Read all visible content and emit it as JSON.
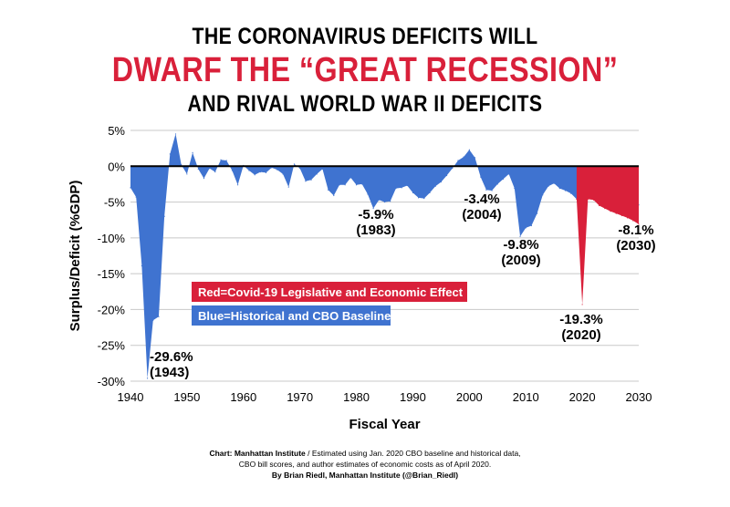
{
  "title": {
    "line1": "THE CORONAVIRUS DEFICITS WILL",
    "line2": "DWARF THE “GREAT RECESSION”",
    "line3": "AND RIVAL WORLD WAR II DEFICITS"
  },
  "colors": {
    "historical": "#3f73d0",
    "covid": "#d9203a",
    "title_accent": "#d9203a"
  },
  "footer": {
    "source_label": "Chart: Manhattan Institute",
    "source_text": " / Estimated using Jan. 2020 CBO baseline and historical data,",
    "line2": "CBO bill scores, and author estimates of economic costs as of April 2020.",
    "line3": "By Brian Riedl, Manhattan Institute (@Brian_Riedl)"
  },
  "chart_data": {
    "type": "area",
    "xlabel": "Fiscal Year",
    "ylabel": "Surplus/Deficit (%GDP)",
    "xlim": [
      1940,
      2030
    ],
    "ylim": [
      -30,
      5
    ],
    "x_ticks": [
      1940,
      1950,
      1960,
      1970,
      1980,
      1990,
      2000,
      2010,
      2020,
      2030
    ],
    "x_tick_labels": [
      "1940",
      "1950",
      "1960",
      "1970",
      "1980",
      "1990",
      "2000",
      "2010",
      "2020",
      "2030"
    ],
    "y_ticks": [
      5,
      0,
      -5,
      -10,
      -15,
      -20,
      -25,
      -30
    ],
    "y_tick_labels": [
      "5%",
      "0%",
      "-5%",
      "-10%",
      "-15%",
      "-20%",
      "-25%",
      "-30%"
    ],
    "grid": "horizontal",
    "legend": [
      {
        "text": "Red=Covid-19 Legislative and Economic Effect",
        "color": "#d9203a"
      },
      {
        "text": "Blue=Historical and CBO Baseline",
        "color": "#3f73d0"
      }
    ],
    "series": [
      {
        "name": "Blue=Historical and CBO Baseline",
        "color": "#3f73d0",
        "x": [
          1940,
          1941,
          1942,
          1943,
          1944,
          1945,
          1946,
          1947,
          1948,
          1949,
          1950,
          1951,
          1952,
          1953,
          1954,
          1955,
          1956,
          1957,
          1958,
          1959,
          1960,
          1961,
          1962,
          1963,
          1964,
          1965,
          1966,
          1967,
          1968,
          1969,
          1970,
          1971,
          1972,
          1973,
          1974,
          1975,
          1976,
          1977,
          1978,
          1979,
          1980,
          1981,
          1982,
          1983,
          1984,
          1985,
          1986,
          1987,
          1988,
          1989,
          1990,
          1991,
          1992,
          1993,
          1994,
          1995,
          1996,
          1997,
          1998,
          1999,
          2000,
          2001,
          2002,
          2003,
          2004,
          2005,
          2006,
          2007,
          2008,
          2009,
          2010,
          2011,
          2012,
          2013,
          2014,
          2015,
          2016,
          2017,
          2018,
          2019,
          2020,
          2021,
          2022,
          2023,
          2024,
          2025,
          2026,
          2027,
          2028,
          2029,
          2030
        ],
        "values": [
          -3.0,
          -4.3,
          -13.9,
          -29.6,
          -21.5,
          -21.0,
          -7.0,
          1.7,
          4.5,
          0.2,
          -1.1,
          1.9,
          -0.4,
          -1.7,
          -0.3,
          -0.8,
          0.9,
          0.8,
          -0.6,
          -2.6,
          0.1,
          -0.6,
          -1.2,
          -0.8,
          -0.9,
          -0.2,
          -0.5,
          -1.1,
          -2.9,
          0.3,
          -0.3,
          -2.1,
          -1.9,
          -1.1,
          -0.4,
          -3.3,
          -4.1,
          -2.6,
          -2.6,
          -1.6,
          -2.6,
          -2.5,
          -3.9,
          -5.9,
          -4.7,
          -5.0,
          -4.9,
          -3.1,
          -3.0,
          -2.7,
          -3.7,
          -4.4,
          -4.5,
          -3.7,
          -2.8,
          -2.2,
          -1.3,
          -0.3,
          0.8,
          1.3,
          2.3,
          1.2,
          -1.5,
          -3.3,
          -3.4,
          -2.5,
          -1.8,
          -1.1,
          -3.1,
          -9.8,
          -8.6,
          -8.3,
          -6.6,
          -4.0,
          -2.8,
          -2.4,
          -3.1,
          -3.4,
          -3.8,
          -4.6,
          -4.9,
          -4.3,
          -4.3,
          -4.4,
          -4.6,
          -4.6,
          -4.6,
          -4.6,
          -4.9,
          -5.0,
          -5.4
        ]
      },
      {
        "name": "Red=Covid-19 Legislative and Economic Effect",
        "color": "#d9203a",
        "x": [
          2019,
          2020,
          2021,
          2022,
          2023,
          2024,
          2025,
          2026,
          2027,
          2028,
          2029,
          2030
        ],
        "values": [
          -4.6,
          -19.3,
          -4.6,
          -4.7,
          -5.5,
          -5.9,
          -6.3,
          -6.6,
          -6.9,
          -7.2,
          -7.6,
          -8.1
        ]
      }
    ],
    "annotations": [
      {
        "value": "-29.6%",
        "year": "(1943)"
      },
      {
        "value": "-5.9%",
        "year": "(1983)"
      },
      {
        "value": "-3.4%",
        "year": "(2004)"
      },
      {
        "value": "-9.8%",
        "year": "(2009)"
      },
      {
        "value": "-19.3%",
        "year": "(2020)"
      },
      {
        "value": "-8.1%",
        "year": "(2030)"
      }
    ]
  }
}
